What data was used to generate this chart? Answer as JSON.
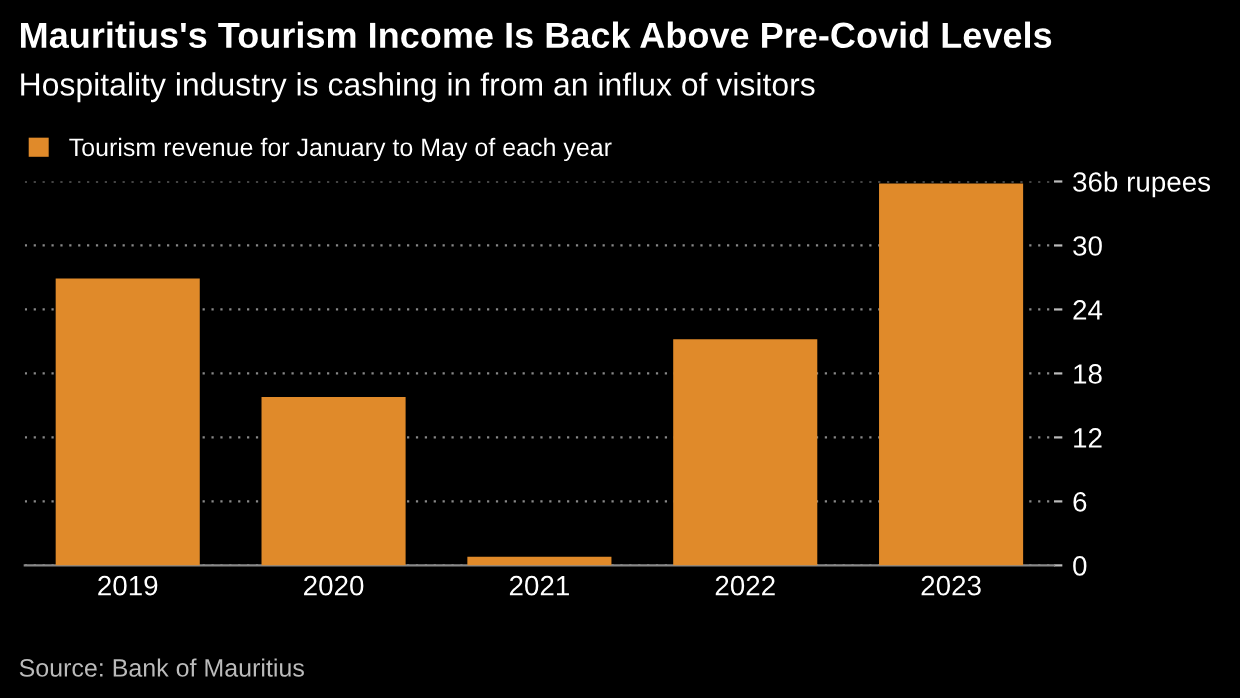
{
  "chart_data": {
    "type": "bar",
    "title": "Mauritius's Tourism Income Is Back Above Pre-Covid Levels",
    "subtitle": "Hospitality industry is cashing in from an influx of visitors",
    "categories": [
      "2019",
      "2020",
      "2021",
      "2022",
      "2023"
    ],
    "series": [
      {
        "name": "Tourism revenue for January to May of each year",
        "color": "#e08a2a",
        "values": [
          26.9,
          15.8,
          0.8,
          21.2,
          35.8
        ]
      }
    ],
    "ylim": [
      0,
      36
    ],
    "yticks": [
      0,
      6,
      12,
      18,
      24,
      30,
      {
        "value": 36,
        "label": "36b rupees"
      }
    ],
    "grid": "y",
    "legend": "top left",
    "annotations": [
      "Source: Bank of Mauritius"
    ]
  }
}
